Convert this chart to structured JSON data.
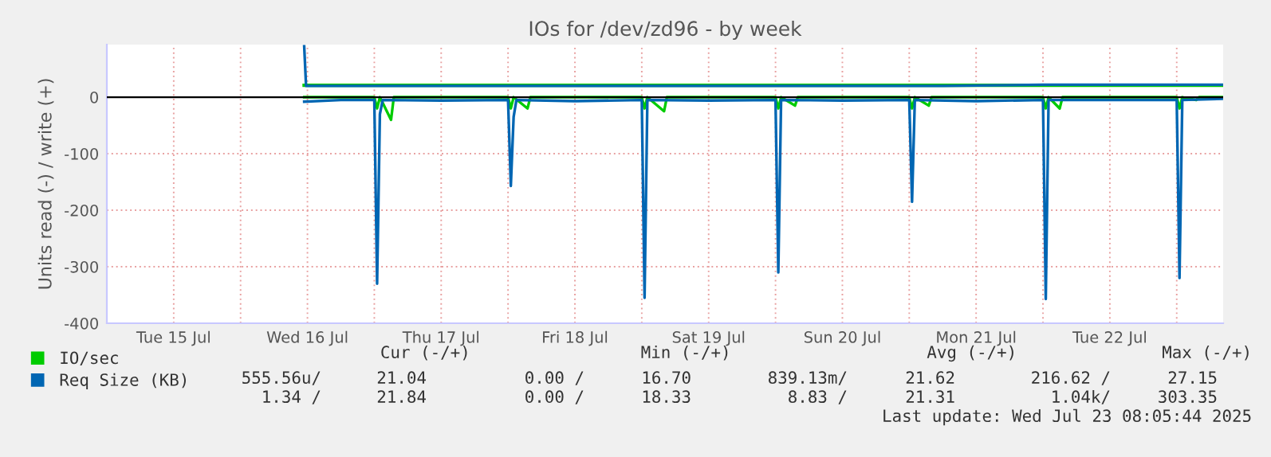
{
  "chart_data": {
    "type": "line",
    "title": "IOs for /dev/zd96 - by week",
    "ylabel": "Units read (-) / write (+)",
    "xlim": [
      "2025-07-15T00:00",
      "2025-07-23T08:20"
    ],
    "xticks": [
      {
        "value": "2025-07-15T12:00",
        "label": "Tue 15 Jul"
      },
      {
        "value": "2025-07-16T00:00",
        "label": null
      },
      {
        "value": "2025-07-16T12:00",
        "label": "Wed 16 Jul"
      },
      {
        "value": "2025-07-17T00:00",
        "label": null
      },
      {
        "value": "2025-07-17T12:00",
        "label": "Thu 17 Jul"
      },
      {
        "value": "2025-07-18T00:00",
        "label": null
      },
      {
        "value": "2025-07-18T12:00",
        "label": "Fri 18 Jul"
      },
      {
        "value": "2025-07-19T00:00",
        "label": null
      },
      {
        "value": "2025-07-19T12:00",
        "label": "Sat 19 Jul"
      },
      {
        "value": "2025-07-20T00:00",
        "label": null
      },
      {
        "value": "2025-07-20T12:00",
        "label": "Sun 20 Jul"
      },
      {
        "value": "2025-07-21T00:00",
        "label": null
      },
      {
        "value": "2025-07-21T12:00",
        "label": "Mon 21 Jul"
      },
      {
        "value": "2025-07-22T00:00",
        "label": null
      },
      {
        "value": "2025-07-22T12:00",
        "label": "Tue 22 Jul"
      },
      {
        "value": "2025-07-23T00:00",
        "label": null
      }
    ],
    "ylim": [
      -400,
      93
    ],
    "yticks": [
      -400,
      -300,
      -200,
      -100,
      0
    ],
    "grid": true,
    "legend": "bottom left",
    "ref_lines": [
      {
        "axis": "y",
        "value": 0,
        "color": "#000000"
      }
    ],
    "series": [
      {
        "name": "IO/sec",
        "color": "#00cc00",
        "x": [
          "2025-07-16T11:25",
          "2025-07-17T00:00",
          "2025-07-18T12:00",
          "2025-07-20T00:00",
          "2025-07-22T00:00",
          "2025-07-23T08:05"
        ],
        "values": [
          21,
          21,
          21,
          21,
          21,
          21
        ]
      },
      {
        "color": "#00cc00",
        "x": [
          "2025-07-16T11:25",
          "2025-07-17T00:00",
          "2025-07-17T00:30",
          "2025-07-17T01:00",
          "2025-07-17T03:00",
          "2025-07-17T03:30",
          "2025-07-18T00:00",
          "2025-07-18T00:30",
          "2025-07-18T01:00",
          "2025-07-18T03:30",
          "2025-07-18T04:00",
          "2025-07-19T00:00",
          "2025-07-19T00:30",
          "2025-07-19T01:00",
          "2025-07-19T04:00",
          "2025-07-19T04:30",
          "2025-07-20T00:00",
          "2025-07-20T00:30",
          "2025-07-20T01:00",
          "2025-07-20T03:30",
          "2025-07-20T04:00",
          "2025-07-21T00:00",
          "2025-07-21T00:30",
          "2025-07-21T01:00",
          "2025-07-21T03:30",
          "2025-07-21T04:00",
          "2025-07-22T00:00",
          "2025-07-22T00:30",
          "2025-07-22T01:00",
          "2025-07-22T03:00",
          "2025-07-22T03:30",
          "2025-07-23T00:00",
          "2025-07-23T00:30",
          "2025-07-23T01:00",
          "2025-07-23T03:30",
          "2025-07-23T04:00",
          "2025-07-23T08:05"
        ],
        "values": [
          0,
          0,
          -20,
          0,
          -40,
          0,
          0,
          -20,
          0,
          -20,
          0,
          0,
          -20,
          0,
          -25,
          0,
          0,
          -20,
          0,
          -15,
          0,
          0,
          -20,
          0,
          -15,
          0,
          0,
          -20,
          0,
          -20,
          0,
          0,
          -20,
          0,
          -5,
          0,
          0
        ]
      },
      {
        "name": "Req Size (KB)",
        "color": "#0066b3",
        "x": [
          "2025-07-16T11:25",
          "2025-07-16T11:45",
          "2025-07-18T00:00",
          "2025-07-20T00:00",
          "2025-07-21T06:00",
          "2025-07-22T00:00",
          "2025-07-23T08:05"
        ],
        "values": [
          90,
          20,
          20,
          20,
          20,
          22,
          22
        ]
      },
      {
        "color": "#0066b3",
        "x": [
          "2025-07-16T11:25",
          "2025-07-16T18:00",
          "2025-07-17T00:00",
          "2025-07-17T00:30",
          "2025-07-17T01:00",
          "2025-07-17T01:30",
          "2025-07-17T12:00",
          "2025-07-18T00:00",
          "2025-07-18T00:30",
          "2025-07-18T01:00",
          "2025-07-18T01:30",
          "2025-07-18T12:00",
          "2025-07-19T00:00",
          "2025-07-19T00:30",
          "2025-07-19T01:00",
          "2025-07-19T12:00",
          "2025-07-20T00:00",
          "2025-07-20T00:30",
          "2025-07-20T01:00",
          "2025-07-20T12:00",
          "2025-07-21T00:00",
          "2025-07-21T00:30",
          "2025-07-21T01:00",
          "2025-07-21T12:00",
          "2025-07-22T00:00",
          "2025-07-22T00:30",
          "2025-07-22T01:00",
          "2025-07-22T12:00",
          "2025-07-23T00:00",
          "2025-07-23T00:30",
          "2025-07-23T01:00",
          "2025-07-23T08:05"
        ],
        "values": [
          -8,
          -5,
          -5,
          -330,
          -30,
          -5,
          -6,
          -5,
          -157,
          -35,
          -5,
          -7,
          -5,
          -355,
          -5,
          -6,
          -5,
          -310,
          -5,
          -6,
          -5,
          -185,
          -5,
          -7,
          -5,
          -357,
          -5,
          -5,
          -5,
          -320,
          -5,
          -3
        ]
      }
    ],
    "annotations": [
      "Cur (-/+)",
      "Min (-/+)",
      "Avg (-/+)",
      "Max (-/+)",
      "555.56u/",
      "21.04",
      "0.00 /",
      "16.70",
      "839.13m/",
      "21.62",
      "216.62 /",
      "27.15",
      "1.34 /",
      "21.84",
      "0.00 /",
      "18.33",
      "8.83 /",
      "21.31",
      "1.04k/",
      "303.35",
      "Last update: Wed Jul 23 08:05:44 2025"
    ]
  }
}
